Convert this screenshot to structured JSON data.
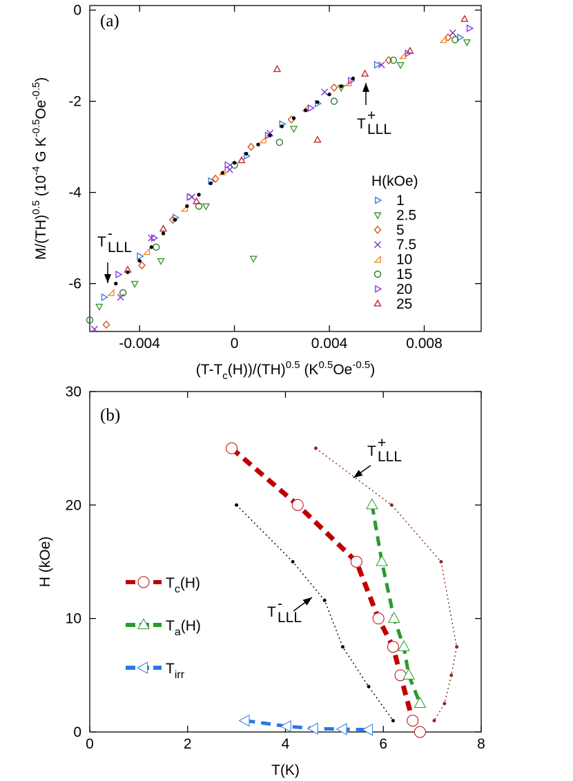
{
  "chart_data": [
    {
      "type": "scatter",
      "panel_label": "(a)",
      "xlabel": [
        "(T-T",
        {
          "sub": "c"
        },
        "(H))/(TH)",
        {
          "sup": "0.5"
        },
        " (K",
        {
          "sup": "0.5"
        },
        "Oe",
        {
          "sup": "-0.5"
        },
        ")"
      ],
      "ylabel": [
        "M/(TH)",
        {
          "sup": "0.5"
        },
        " (10",
        {
          "sup": "-4"
        },
        " G K",
        {
          "sup": "-0.5"
        },
        "Oe",
        {
          "sup": "-0.5"
        },
        ")"
      ],
      "xlim": [
        -0.0061,
        0.0104
      ],
      "ylim": [
        -7.05,
        0.1
      ],
      "xticks": [
        -0.004,
        0,
        0.004,
        0.008
      ],
      "yticks": [
        -6,
        -4,
        -2,
        0
      ],
      "legend_title": "H(kOe)",
      "series": [
        {
          "name": "1",
          "color": "#3a7fd5",
          "marker": "tri-right",
          "x": [
            -0.0055,
            -0.004,
            -0.0025,
            -0.001,
            0.0005,
            0.002,
            0.0035,
            0.006,
            0.0095
          ],
          "values": [
            -6.3,
            -5.4,
            -4.55,
            -3.75,
            -3.2,
            -2.5,
            -2.05,
            -1.2,
            -0.6
          ]
        },
        {
          "name": "2.5",
          "color": "#3a9a2a",
          "marker": "tri-down",
          "x": [
            -0.0057,
            -0.0042,
            -0.0031,
            -0.0012,
            0.0008,
            0.0025,
            0.0045,
            0.007,
            0.0098
          ],
          "values": [
            -6.5,
            -6.0,
            -5.5,
            -4.3,
            -5.45,
            -2.6,
            -1.7,
            -1.2,
            -0.7
          ]
        },
        {
          "name": "5",
          "color": "#d9501a",
          "marker": "diamond",
          "x": [
            -0.0054,
            -0.0039,
            -0.0026,
            -0.0008,
            0.0007,
            0.0024,
            0.0042,
            0.0065,
            0.009
          ],
          "values": [
            -6.9,
            -5.6,
            -4.6,
            -3.7,
            -3.0,
            -2.4,
            -1.7,
            -1.1,
            -0.6
          ]
        },
        {
          "name": "7.5",
          "color": "#7a2fd0",
          "marker": "x",
          "x": [
            -0.0059,
            -0.0048,
            -0.0035,
            -0.0018,
            -0.0002,
            0.0015,
            0.0038,
            0.0062,
            0.0092
          ],
          "values": [
            -7.0,
            -6.3,
            -5.0,
            -4.1,
            -3.5,
            -2.7,
            -1.8,
            -1.2,
            -0.5
          ]
        },
        {
          "name": "10",
          "color": "#f0882a",
          "marker": "tri-corner",
          "x": [
            -0.0052,
            -0.0037,
            -0.0021,
            -0.0005,
            0.0012,
            0.003,
            0.0048,
            0.0071,
            0.0088
          ],
          "values": [
            -6.2,
            -5.3,
            -4.35,
            -3.55,
            -2.85,
            -2.15,
            -1.6,
            -1.0,
            -0.65
          ]
        },
        {
          "name": "15",
          "color": "#2a7a2a",
          "marker": "circle",
          "x": [
            -0.0061,
            -0.0047,
            -0.0033,
            -0.0015,
            0.0,
            0.0019,
            0.0042,
            0.0067,
            0.0093
          ],
          "values": [
            -6.8,
            -6.2,
            -5.2,
            -4.3,
            -3.4,
            -2.9,
            -2.0,
            -1.1,
            -0.65
          ]
        },
        {
          "name": "20",
          "color": "#8a3be0",
          "marker": "tri-right",
          "x": [
            -0.0049,
            -0.0034,
            -0.0019,
            -0.0003,
            0.0014,
            0.0032,
            0.0049,
            0.0073,
            0.0099
          ],
          "values": [
            -5.8,
            -5.0,
            -4.1,
            -3.4,
            -2.75,
            -2.15,
            -1.55,
            -0.95,
            -0.4
          ]
        },
        {
          "name": "25",
          "color": "#c0282d",
          "marker": "tri-up",
          "x": [
            -0.0045,
            -0.003,
            -0.0016,
            0.0003,
            0.0018,
            0.0035,
            0.0055,
            0.0074,
            0.0097
          ],
          "values": [
            -5.7,
            -4.8,
            -4.2,
            -3.3,
            -1.3,
            -2.85,
            -1.4,
            -0.9,
            -0.2
          ]
        },
        {
          "color": "#000000",
          "marker": "dot",
          "x": [
            -0.005,
            -0.0045,
            -0.004,
            -0.0035,
            -0.003,
            -0.0025,
            -0.002,
            -0.0015,
            -0.001,
            -0.0005,
            0,
            0.0005,
            0.001,
            0.0015,
            0.002,
            0.0025,
            0.003,
            0.0035,
            0.004,
            0.0045,
            0.005
          ],
          "values": [
            -6.0,
            -5.75,
            -5.5,
            -5.2,
            -4.9,
            -4.6,
            -4.3,
            -4.05,
            -3.8,
            -3.57,
            -3.35,
            -3.15,
            -2.95,
            -2.75,
            -2.55,
            -2.37,
            -2.2,
            -2.02,
            -1.85,
            -1.67,
            -1.5
          ]
        }
      ],
      "annotations": [
        {
          "text": "T",
          "sup": "+",
          "sub": "LLL"
        },
        {
          "text": "T",
          "sup": "-",
          "sub": "LLL"
        }
      ]
    },
    {
      "type": "line",
      "panel_label": "(b)",
      "xlabel": [
        "T(K)"
      ],
      "ylabel": [
        "H (kOe)"
      ],
      "xlim": [
        0,
        8
      ],
      "ylim": [
        0,
        30
      ],
      "xticks": [
        0,
        2,
        4,
        6,
        8
      ],
      "yticks": [
        0,
        10,
        20,
        30
      ],
      "series": [
        {
          "name": [
            "T",
            {
              "sub": "c"
            },
            "(H)"
          ],
          "color": "#c00000",
          "marker": "circle",
          "linestyle": "dashed",
          "x": [
            2.9,
            4.25,
            5.45,
            5.9,
            6.2,
            6.35,
            6.6,
            6.75
          ],
          "values": [
            25,
            20,
            15,
            10,
            7.5,
            5,
            1,
            0
          ]
        },
        {
          "name": [
            "T",
            {
              "sub": "a"
            },
            "(H)"
          ],
          "color": "#2a9a2a",
          "marker": "tri-up",
          "linestyle": "dashed",
          "x": [
            5.77,
            5.97,
            6.22,
            6.42,
            6.52,
            6.75
          ],
          "values": [
            20,
            15,
            10,
            7.5,
            5,
            2.5
          ]
        },
        {
          "name": [
            "T",
            {
              "sub": "irr"
            }
          ],
          "color": "#2a7ae0",
          "marker": "tri-left",
          "linestyle": "dashed",
          "x": [
            3.18,
            4.03,
            4.58,
            5.17,
            5.7
          ],
          "values": [
            1,
            0.5,
            0.3,
            0.25,
            0.2
          ]
        },
        {
          "color": "#000000",
          "marker": "dot",
          "linestyle": "dotted",
          "x": [
            3.0,
            4.15,
            4.8,
            5.17,
            5.7,
            6.2
          ],
          "values": [
            20,
            15,
            11.6,
            7.5,
            4,
            1
          ]
        },
        {
          "color": "#8b2a1a",
          "marker": "dot",
          "linestyle": "dotted",
          "x": [
            4.62,
            6.17,
            7.18,
            7.5,
            7.39,
            7.25,
            7.04
          ],
          "values": [
            25,
            20,
            15,
            7.5,
            5,
            2.5,
            1
          ]
        }
      ],
      "annotations": [
        {
          "text": "T",
          "sup": "+",
          "sub": "LLL"
        },
        {
          "text": "T",
          "sup": "-",
          "sub": "LLL"
        }
      ]
    }
  ]
}
